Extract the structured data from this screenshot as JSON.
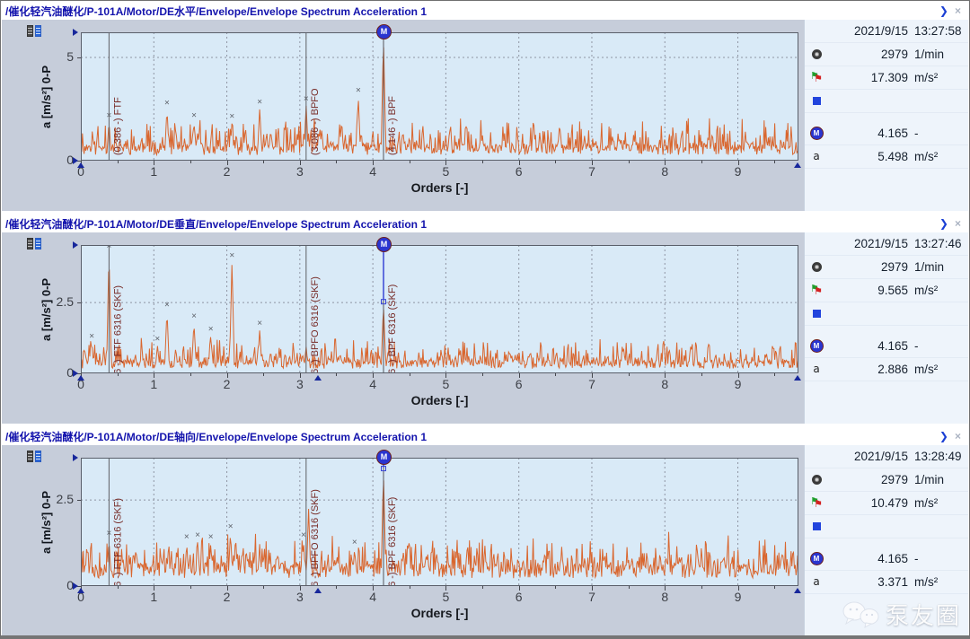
{
  "icons": {
    "expand": "❯",
    "close": "×",
    "a_label": "a",
    "flag": "⚑",
    "marker_letter": "M"
  },
  "watermark": {
    "text": "泵友圈"
  },
  "panels": [
    {
      "title": "/催化轻汽油醚化/P-101A/Motor/DE水平/Envelope/Envelope Spectrum Acceleration 1",
      "selected": true,
      "info": {
        "date": "2021/9/15",
        "time": "13:27:58",
        "speed": "2979",
        "speed_unit": "1/min",
        "overall": "17.309",
        "overall_unit": "m/s²",
        "marker_value": "4.165",
        "marker_unit": "-",
        "a_value": "5.498",
        "a_unit": "m/s²"
      },
      "chart_data": {
        "type": "line",
        "xlabel": "Orders [-]",
        "ylabel": "a [m/s²] 0-P",
        "xlim": [
          0,
          9.83
        ],
        "ylim": [
          0,
          6.22
        ],
        "xticks": [
          0,
          1,
          2,
          3,
          4,
          5,
          6,
          7,
          8,
          9
        ],
        "yticks": [
          0,
          5
        ],
        "line_color": "#d9662e",
        "seed": 11,
        "noise_base": 0.55,
        "noise_amp": 0.5,
        "peaks": [
          [
            0.386,
            1.9
          ],
          [
            1.18,
            2.5
          ],
          [
            1.3,
            1.6
          ],
          [
            1.55,
            1.9
          ],
          [
            1.62,
            1.4
          ],
          [
            2.07,
            1.85
          ],
          [
            2.25,
            1.4
          ],
          [
            2.45,
            2.55
          ],
          [
            2.6,
            1.5
          ],
          [
            3.086,
            2.7
          ],
          [
            3.3,
            1.5
          ],
          [
            3.55,
            1.4
          ],
          [
            3.8,
            3.1
          ],
          [
            4.146,
            6.0
          ],
          [
            4.5,
            1.2
          ],
          [
            5.05,
            1.4
          ],
          [
            5.5,
            1.3
          ],
          [
            5.8,
            1.2
          ],
          [
            6.2,
            2.1
          ],
          [
            6.55,
            1.3
          ],
          [
            6.9,
            1.2
          ],
          [
            7.4,
            1.1
          ],
          [
            8.0,
            1.1
          ],
          [
            8.6,
            1.0
          ],
          [
            9.2,
            1.0
          ]
        ],
        "marker_points": [
          [
            0.386,
            1.9
          ],
          [
            1.18,
            2.5
          ],
          [
            1.55,
            1.9
          ],
          [
            2.07,
            1.85
          ],
          [
            2.45,
            2.55
          ],
          [
            3.086,
            2.7
          ],
          [
            3.8,
            3.1
          ]
        ],
        "cursors": [
          {
            "x": 0.386,
            "label": "(0.386 -) FTF"
          },
          {
            "x": 3.086,
            "label": "(3.086 -) BPFO"
          }
        ],
        "marker_cursor": {
          "x": 4.146,
          "y": 6.0,
          "label": "(4.146 -) BPF"
        },
        "ref_marker_x": null
      }
    },
    {
      "title": "/催化轻汽油醚化/P-101A/Motor/DE垂直/Envelope/Envelope Spectrum Acceleration 1",
      "selected": false,
      "info": {
        "date": "2021/9/15",
        "time": "13:27:46",
        "speed": "2979",
        "speed_unit": "1/min",
        "overall": "9.565",
        "overall_unit": "m/s²",
        "marker_value": "4.165",
        "marker_unit": "-",
        "a_value": "2.886",
        "a_unit": "m/s²"
      },
      "chart_data": {
        "type": "line",
        "xlabel": "Orders [-]",
        "ylabel": "a [m/s²] 0-P",
        "xlim": [
          0,
          9.83
        ],
        "ylim": [
          0,
          4.53
        ],
        "xticks": [
          0,
          1,
          2,
          3,
          4,
          5,
          6,
          7,
          8,
          9
        ],
        "yticks": [
          0,
          2.5
        ],
        "line_color": "#d9662e",
        "seed": 22,
        "noise_base": 0.33,
        "noise_amp": 0.32,
        "peaks": [
          [
            0.15,
            1.1
          ],
          [
            0.386,
            4.28
          ],
          [
            1.05,
            1.0
          ],
          [
            1.18,
            2.2
          ],
          [
            1.3,
            0.9
          ],
          [
            1.55,
            1.8
          ],
          [
            1.78,
            1.35
          ],
          [
            2.07,
            3.95
          ],
          [
            2.45,
            1.55
          ],
          [
            2.6,
            0.8
          ],
          [
            3.086,
            0.95
          ],
          [
            3.5,
            0.6
          ],
          [
            4.146,
            2.45
          ],
          [
            4.8,
            0.55
          ],
          [
            5.9,
            0.65
          ],
          [
            7.0,
            0.5
          ],
          [
            8.35,
            0.9
          ],
          [
            9.3,
            0.5
          ]
        ],
        "marker_points": [
          [
            0.15,
            1.1
          ],
          [
            0.386,
            4.28
          ],
          [
            1.05,
            1.0
          ],
          [
            1.18,
            2.2
          ],
          [
            1.55,
            1.8
          ],
          [
            1.78,
            1.35
          ],
          [
            2.07,
            3.95
          ],
          [
            2.45,
            1.55
          ]
        ],
        "cursors": [
          {
            "x": 0.386,
            "label": "(0.386 -) FTF 6316 (SKF)"
          },
          {
            "x": 3.086,
            "label": "(3.086 -) BPFO 6316 (SKF)"
          }
        ],
        "marker_cursor": {
          "x": 4.146,
          "y": 2.45,
          "label": "(4.146 -) BPF 6316 (SKF)"
        },
        "ref_marker_x": 3.25
      }
    },
    {
      "title": "/催化轻汽油醚化/P-101A/Motor/DE轴向/Envelope/Envelope Spectrum Acceleration 1",
      "selected": false,
      "info": {
        "date": "2021/9/15",
        "time": "13:28:49",
        "speed": "2979",
        "speed_unit": "1/min",
        "overall": "10.479",
        "overall_unit": "m/s²",
        "marker_value": "4.165",
        "marker_unit": "-",
        "a_value": "3.371",
        "a_unit": "m/s²"
      },
      "chart_data": {
        "type": "line",
        "xlabel": "Orders [-]",
        "ylabel": "a [m/s²] 0-P",
        "xlim": [
          0,
          9.83
        ],
        "ylim": [
          0,
          3.73
        ],
        "xticks": [
          0,
          1,
          2,
          3,
          4,
          5,
          6,
          7,
          8,
          9
        ],
        "yticks": [
          0,
          2.5
        ],
        "line_color": "#d9662e",
        "seed": 33,
        "noise_base": 0.46,
        "noise_amp": 0.36,
        "peaks": [
          [
            0.386,
            1.35
          ],
          [
            0.75,
            1.0
          ],
          [
            1.2,
            1.1
          ],
          [
            1.45,
            1.25
          ],
          [
            1.6,
            1.3
          ],
          [
            1.78,
            1.25
          ],
          [
            2.05,
            1.55
          ],
          [
            2.12,
            1.45
          ],
          [
            2.45,
            1.15
          ],
          [
            2.7,
            1.0
          ],
          [
            3.05,
            1.3
          ],
          [
            3.12,
            2.25
          ],
          [
            3.45,
            0.9
          ],
          [
            3.75,
            1.1
          ],
          [
            4.146,
            3.35
          ],
          [
            4.4,
            0.9
          ],
          [
            4.75,
            1.0
          ],
          [
            5.3,
            0.95
          ],
          [
            5.9,
            0.85
          ],
          [
            6.35,
            0.95
          ],
          [
            6.9,
            0.8
          ],
          [
            7.5,
            0.85
          ],
          [
            8.2,
            0.9
          ],
          [
            8.8,
            0.8
          ],
          [
            9.3,
            0.85
          ]
        ],
        "marker_points": [
          [
            0.386,
            1.35
          ],
          [
            1.45,
            1.25
          ],
          [
            1.6,
            1.3
          ],
          [
            1.78,
            1.25
          ],
          [
            2.05,
            1.55
          ],
          [
            3.05,
            1.3
          ],
          [
            3.75,
            1.1
          ]
        ],
        "cursors": [
          {
            "x": 0.386,
            "label": "(0.386 -) FTF 6316 (SKF)"
          },
          {
            "x": 3.086,
            "label": "(3.086 -) BPFO 6316 (SKF)"
          }
        ],
        "marker_cursor": {
          "x": 4.146,
          "y": 3.35,
          "label": "(4.146 -) BPF 6316 (SKF)"
        },
        "ref_marker_x": 3.25
      }
    }
  ]
}
